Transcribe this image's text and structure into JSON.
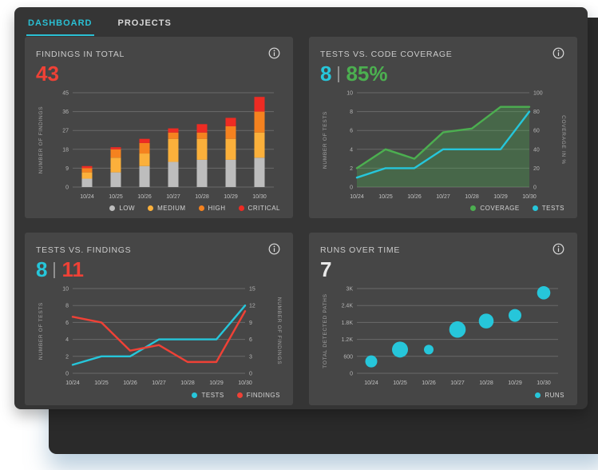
{
  "window": {
    "tabs": [
      {
        "label": "DASHBOARD",
        "active": true
      },
      {
        "label": "PROJECTS",
        "active": false
      }
    ]
  },
  "colors": {
    "accent_cyan": "#2ac0d4",
    "cyan": "#26c6da",
    "green": "#4caf50",
    "red": "#ef4136",
    "orange_high": "#f5821f",
    "amber_medium": "#fbb03b",
    "gray_low": "#bdbdbd",
    "white_value": "#e9e9e9"
  },
  "cards": [
    {
      "title": "FINDINGS IN TOTAL",
      "headline": [
        {
          "text": "43",
          "color": "#ef4136"
        }
      ],
      "chart_data": {
        "type": "stacked-bar",
        "categories": [
          "10/24",
          "10/25",
          "10/26",
          "10/27",
          "10/28",
          "10/29",
          "10/30"
        ],
        "series": [
          {
            "name": "LOW",
            "color": "#bdbdbd",
            "values": [
              4,
              7,
              10,
              12,
              13,
              13,
              14
            ]
          },
          {
            "name": "MEDIUM",
            "color": "#fbb03b",
            "values": [
              3,
              7,
              6,
              11,
              10,
              10,
              12
            ]
          },
          {
            "name": "HIGH",
            "color": "#f5821f",
            "values": [
              2,
              4,
              5,
              3,
              3,
              6,
              10
            ]
          },
          {
            "name": "CRITICAL",
            "color": "#ee2b23",
            "values": [
              1,
              1,
              2,
              2,
              4,
              4,
              7
            ]
          }
        ],
        "left_axis": {
          "label": "NUMBER OF FINDINGS",
          "min": 0,
          "max": 45,
          "ticks": [
            0,
            9,
            18,
            27,
            36,
            45
          ]
        },
        "grid": true,
        "legend_position": "bottom-right"
      }
    },
    {
      "title": "TESTS VS. CODE COVERAGE",
      "headline": [
        {
          "text": "8",
          "color": "#26c6da"
        },
        {
          "text": "85%",
          "color": "#4caf50"
        }
      ],
      "chart_data": {
        "type": "line",
        "categories": [
          "10/24",
          "10/25",
          "10/26",
          "10/27",
          "10/28",
          "10/29",
          "10/30"
        ],
        "left_axis": {
          "label": "NUMBER OF TESTS",
          "min": 0,
          "max": 10,
          "ticks": [
            0,
            2,
            4,
            6,
            8,
            10
          ]
        },
        "right_axis": {
          "label": "COVERAGE IN %",
          "min": 0,
          "max": 100,
          "ticks": [
            0,
            20,
            40,
            60,
            80,
            100
          ]
        },
        "series": [
          {
            "name": "COVERAGE",
            "color": "#4caf50",
            "axis": "right",
            "area": true,
            "values": [
              20,
              40,
              30,
              58,
              62,
              85,
              85
            ]
          },
          {
            "name": "TESTS",
            "color": "#26c6da",
            "axis": "left",
            "values": [
              1,
              2,
              2,
              4,
              4,
              4,
              8
            ]
          }
        ],
        "grid": true,
        "legend_position": "bottom-right"
      }
    },
    {
      "title": "TESTS VS. FINDINGS",
      "headline": [
        {
          "text": "8",
          "color": "#26c6da"
        },
        {
          "text": "11",
          "color": "#ef4136"
        }
      ],
      "chart_data": {
        "type": "line",
        "categories": [
          "10/24",
          "10/25",
          "10/26",
          "10/27",
          "10/28",
          "10/29",
          "10/30"
        ],
        "left_axis": {
          "label": "NUMBER OF TESTS",
          "min": 0,
          "max": 10,
          "ticks": [
            0,
            2,
            4,
            6,
            8,
            10
          ]
        },
        "right_axis": {
          "label": "NUMBER OF FINDINGS",
          "min": 0,
          "max": 15,
          "ticks": [
            0,
            3,
            6,
            9,
            12,
            15
          ]
        },
        "series": [
          {
            "name": "TESTS",
            "color": "#26c6da",
            "axis": "left",
            "values": [
              1,
              2,
              2,
              4,
              4,
              4,
              8
            ]
          },
          {
            "name": "FINDINGS",
            "color": "#ef4136",
            "axis": "right",
            "values": [
              10,
              9,
              4,
              5,
              2,
              2,
              11
            ]
          }
        ],
        "grid": true,
        "legend_position": "bottom-right"
      }
    },
    {
      "title": "RUNS OVER TIME",
      "headline": [
        {
          "text": "7",
          "color": "#e9e9e9"
        }
      ],
      "chart_data": {
        "type": "scatter",
        "categories": [
          "10/24",
          "10/25",
          "10/26",
          "10/27",
          "10/28",
          "10/29",
          "10/30"
        ],
        "left_axis": {
          "label": "TOTAL DETECTED PATHS",
          "min": 0,
          "max": 3000,
          "ticks": [
            0,
            600,
            1200,
            1800,
            2400,
            3000
          ],
          "tick_labels": [
            "0",
            "600",
            "1.2K",
            "1.8K",
            "2.4K",
            "3K"
          ]
        },
        "series": [
          {
            "name": "RUNS",
            "color": "#26c6da",
            "values": [
              420,
              840,
              840,
              1550,
              1850,
              2050,
              2850
            ],
            "sizes": [
              7.5,
              10,
              6,
              10.3,
              9.3,
              8,
              8.3
            ]
          }
        ],
        "grid": true,
        "legend_position": "bottom-right"
      }
    }
  ]
}
